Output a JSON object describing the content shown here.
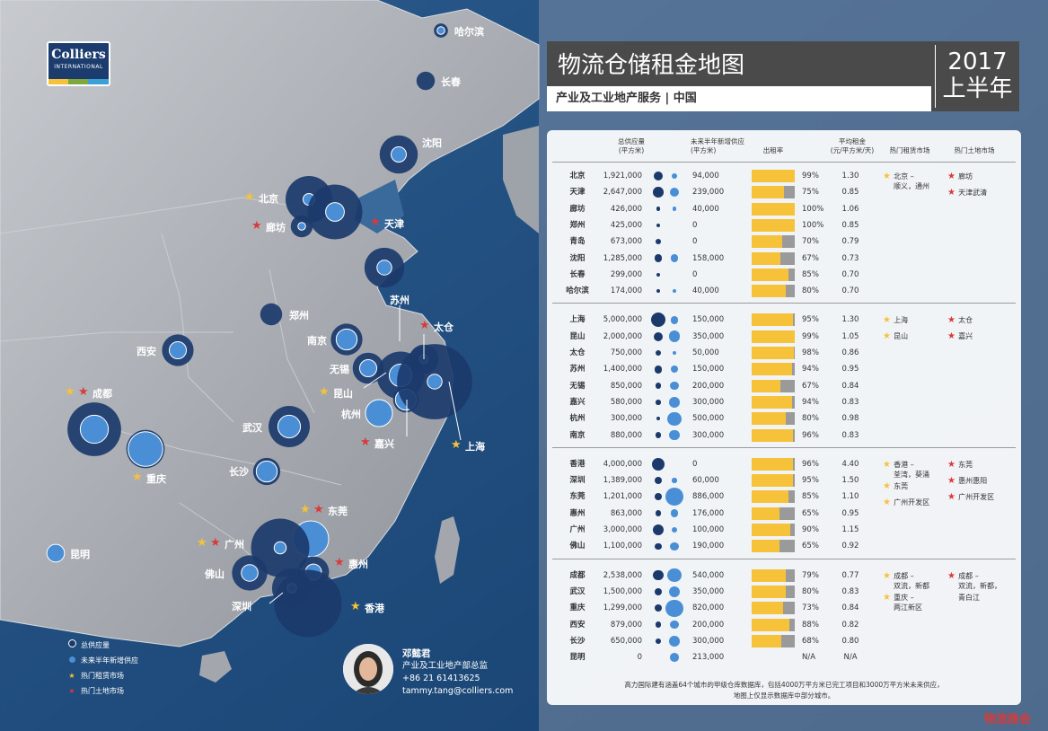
{
  "logo": {
    "brand": "Colliers",
    "sub": "INTERNATIONAL"
  },
  "header": {
    "title": "物流仓储租金地图",
    "subtitle": "产业及工业地产服务 | 中国",
    "year": "2017",
    "period": "上半年"
  },
  "table_headers": {
    "supply": "总供应量",
    "supply_unit": "(平方米)",
    "future": "未来半年新增供应",
    "future_unit": "(平方米)",
    "occupancy": "出租率",
    "rent": "平均租金",
    "rent_unit": "(元/平方米/天)",
    "hot_rent": "热门租赁市场",
    "hot_land": "热门土地市场"
  },
  "groups": [
    {
      "rows": [
        {
          "city": "北京",
          "supply": "1,921,000",
          "future": "94,000",
          "occupancy": "99%",
          "occ_value": 99,
          "rent": "1.30"
        },
        {
          "city": "天津",
          "supply": "2,647,000",
          "future": "239,000",
          "occupancy": "75%",
          "occ_value": 75,
          "rent": "0.85"
        },
        {
          "city": "廊坊",
          "supply": "426,000",
          "future": "40,000",
          "occupancy": "100%",
          "occ_value": 100,
          "rent": "1.06"
        },
        {
          "city": "郑州",
          "supply": "425,000",
          "future": "0",
          "occupancy": "100%",
          "occ_value": 100,
          "rent": "0.85"
        },
        {
          "city": "青岛",
          "supply": "673,000",
          "future": "0",
          "occupancy": "70%",
          "occ_value": 70,
          "rent": "0.79"
        },
        {
          "city": "沈阳",
          "supply": "1,285,000",
          "future": "158,000",
          "occupancy": "67%",
          "occ_value": 67,
          "rent": "0.73"
        },
        {
          "city": "长春",
          "supply": "299,000",
          "future": "0",
          "occupancy": "85%",
          "occ_value": 85,
          "rent": "0.70"
        },
        {
          "city": "哈尔滨",
          "supply": "174,000",
          "future": "40,000",
          "occupancy": "80%",
          "occ_value": 80,
          "rent": "0.70"
        }
      ],
      "hot_rent": [
        {
          "text": "北京 –"
        },
        {
          "text": "顺义，通州",
          "nostar": true
        }
      ],
      "hot_land": [
        {
          "text": "廊坊"
        },
        {
          "text": "天津武清"
        }
      ]
    },
    {
      "rows": [
        {
          "city": "上海",
          "supply": "5,000,000",
          "future": "150,000",
          "occupancy": "95%",
          "occ_value": 95,
          "rent": "1.30"
        },
        {
          "city": "昆山",
          "supply": "2,000,000",
          "future": "350,000",
          "occupancy": "99%",
          "occ_value": 99,
          "rent": "1.05"
        },
        {
          "city": "太仓",
          "supply": "750,000",
          "future": "50,000",
          "occupancy": "98%",
          "occ_value": 98,
          "rent": "0.86"
        },
        {
          "city": "苏州",
          "supply": "1,400,000",
          "future": "150,000",
          "occupancy": "94%",
          "occ_value": 94,
          "rent": "0.95"
        },
        {
          "city": "无锡",
          "supply": "850,000",
          "future": "200,000",
          "occupancy": "67%",
          "occ_value": 67,
          "rent": "0.84"
        },
        {
          "city": "嘉兴",
          "supply": "580,000",
          "future": "300,000",
          "occupancy": "94%",
          "occ_value": 94,
          "rent": "0.83"
        },
        {
          "city": "杭州",
          "supply": "300,000",
          "future": "500,000",
          "occupancy": "80%",
          "occ_value": 80,
          "rent": "0.98"
        },
        {
          "city": "南京",
          "supply": "880,000",
          "future": "300,000",
          "occupancy": "96%",
          "occ_value": 96,
          "rent": "0.83"
        }
      ],
      "hot_rent": [
        {
          "text": "上海"
        },
        {
          "text": "昆山"
        }
      ],
      "hot_land": [
        {
          "text": "太仓"
        },
        {
          "text": "嘉兴"
        }
      ]
    },
    {
      "rows": [
        {
          "city": "香港",
          "supply": "4,000,000",
          "future": "0",
          "occupancy": "96%",
          "occ_value": 96,
          "rent": "4.40"
        },
        {
          "city": "深圳",
          "supply": "1,389,000",
          "future": "60,000",
          "occupancy": "95%",
          "occ_value": 95,
          "rent": "1.50"
        },
        {
          "city": "东莞",
          "supply": "1,201,000",
          "future": "886,000",
          "occupancy": "85%",
          "occ_value": 85,
          "rent": "1.10"
        },
        {
          "city": "惠州",
          "supply": "863,000",
          "future": "176,000",
          "occupancy": "65%",
          "occ_value": 65,
          "rent": "0.95"
        },
        {
          "city": "广州",
          "supply": "3,000,000",
          "future": "100,000",
          "occupancy": "90%",
          "occ_value": 90,
          "rent": "1.15"
        },
        {
          "city": "佛山",
          "supply": "1,100,000",
          "future": "190,000",
          "occupancy": "65%",
          "occ_value": 65,
          "rent": "0.92"
        }
      ],
      "hot_rent": [
        {
          "text": "香港 –"
        },
        {
          "text": "荃湾，葵涌",
          "nostar": true
        },
        {
          "text": "东莞"
        },
        {
          "text": "广州开发区"
        }
      ],
      "hot_land": [
        {
          "text": "东莞"
        },
        {
          "text": "惠州惠阳"
        },
        {
          "text": "广州开发区"
        }
      ]
    },
    {
      "rows": [
        {
          "city": "成都",
          "supply": "2,538,000",
          "future": "540,000",
          "occupancy": "79%",
          "occ_value": 79,
          "rent": "0.77"
        },
        {
          "city": "武汉",
          "supply": "1,500,000",
          "future": "350,000",
          "occupancy": "80%",
          "occ_value": 80,
          "rent": "0.83"
        },
        {
          "city": "重庆",
          "supply": "1,299,000",
          "future": "820,000",
          "occupancy": "73%",
          "occ_value": 73,
          "rent": "0.84"
        },
        {
          "city": "西安",
          "supply": "879,000",
          "future": "200,000",
          "occupancy": "88%",
          "occ_value": 88,
          "rent": "0.82"
        },
        {
          "city": "长沙",
          "supply": "650,000",
          "future": "300,000",
          "occupancy": "68%",
          "occ_value": 68,
          "rent": "0.80"
        },
        {
          "city": "昆明",
          "supply": "0",
          "future": "213,000",
          "occupancy": "N/A",
          "occ_value": null,
          "rent": "N/A"
        }
      ],
      "hot_rent": [
        {
          "text": "成都 –"
        },
        {
          "text": "双流，新都",
          "nostar": true
        },
        {
          "text": "重庆 –"
        },
        {
          "text": "两江新区",
          "nostar": true
        }
      ],
      "hot_land": [
        {
          "text": "成都 –"
        },
        {
          "text": "双流，新都，",
          "nostar": true
        },
        {
          "text": "青白江",
          "nostar": true
        }
      ]
    }
  ],
  "footnote": [
    "高力国际建有涵盖64个城市的甲级仓库数据库，包括4000万平方米已完工项目和3000万平方米未来供应，",
    "地图上仅显示数据库中部分城市。"
  ],
  "legend": [
    {
      "label": "总供应量",
      "icon": "supply-dot"
    },
    {
      "label": "未来半年新增供应",
      "icon": "future-dot"
    },
    {
      "label": "热门租赁市场",
      "icon": "yellow-star"
    },
    {
      "label": "热门土地市场",
      "icon": "red-star"
    }
  ],
  "contact": {
    "name": "邓懿君",
    "title": "产业及工业地产部总监",
    "phone": "+86 21 61413625",
    "email": "tammy.tang@colliers.com"
  },
  "map_labels": [
    "哈尔滨",
    "长春",
    "沈阳",
    "北京",
    "廊坊",
    "天津",
    "郑州",
    "苏州",
    "太仓",
    "西安",
    "南京",
    "无锡",
    "昆山",
    "成都",
    "杭州",
    "武汉",
    "嘉兴",
    "上海",
    "重庆",
    "长沙",
    "东莞",
    "广州",
    "昆明",
    "惠州",
    "佛山",
    "深圳",
    "香港"
  ],
  "colors": {
    "supply": "#1b3a6b",
    "future": "#4a8fd6",
    "occupancy": "#f5c23a",
    "star_rent": "#f5c23a",
    "star_land": "#d83a3a",
    "ocean": "#1f4b7d",
    "land": "#a9adb3"
  },
  "watermark": "物流商会"
}
